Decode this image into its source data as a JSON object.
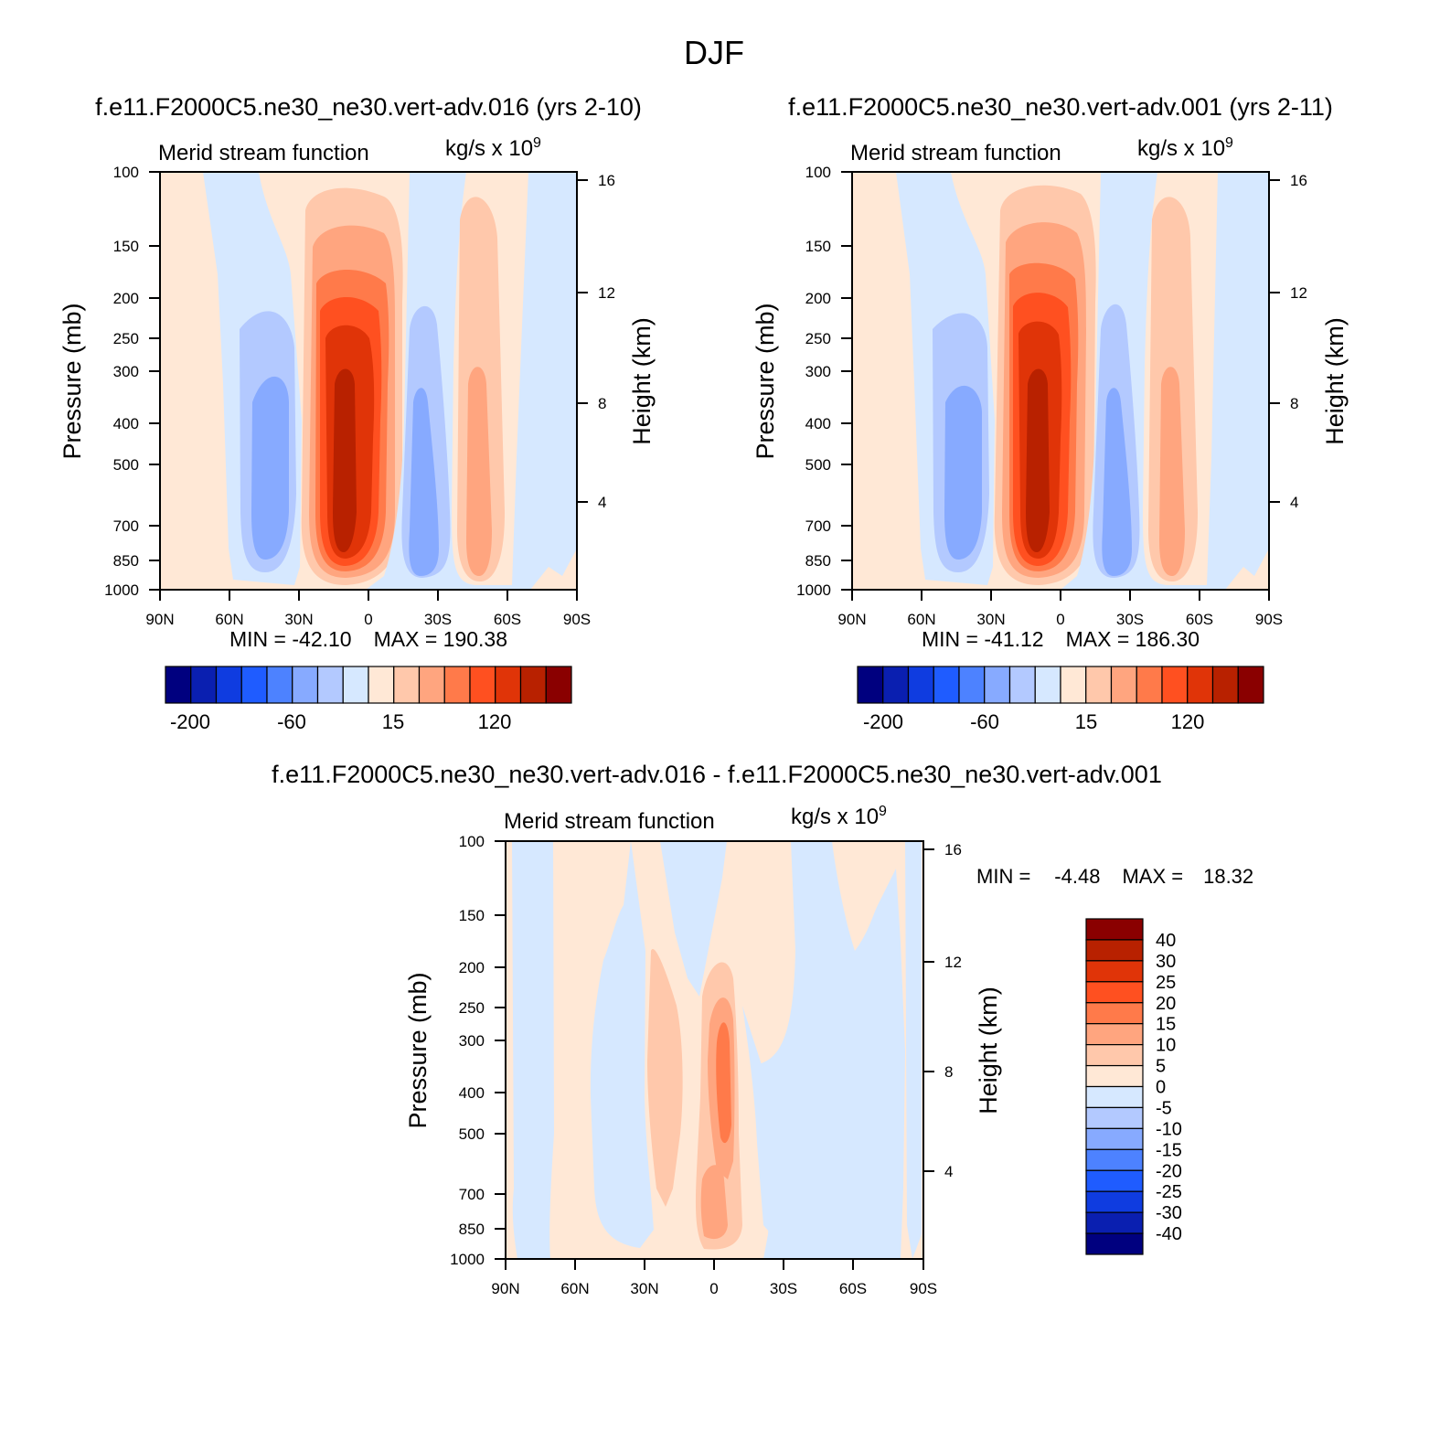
{
  "figure": {
    "title": "DJF"
  },
  "colors": {
    "abs_palette": [
      "#00007f",
      "#0a1fb0",
      "#0f3ce0",
      "#1f5cff",
      "#4d82ff",
      "#87aaff",
      "#b3c9ff",
      "#d6e8ff",
      "#ffe8d6",
      "#ffc8ab",
      "#ffa57f",
      "#ff7a4a",
      "#ff5020",
      "#e03408",
      "#b82100",
      "#8a0000"
    ],
    "diff_palette": [
      "#00007f",
      "#0a1fb0",
      "#0f3ce0",
      "#1f5cff",
      "#4d82ff",
      "#87aaff",
      "#b3c9ff",
      "#d6e8ff",
      "#ffe8d6",
      "#ffc8ab",
      "#ffa57f",
      "#ff7a4a",
      "#ff5020",
      "#e03408",
      "#b82100",
      "#8a0000"
    ]
  },
  "chart_data": [
    {
      "type": "heatmap",
      "title": "f.e11.F2000C5.ne30_ne30.vert-adv.016 (yrs 2-10)",
      "left_subtitle": "Merid stream function",
      "right_subtitle": "kg/s x 10",
      "right_subtitle_exp": "9",
      "xlabel": "",
      "ylabel": "Pressure (mb)",
      "y2label": "Height (km)",
      "xticks": [
        "90N",
        "60N",
        "30N",
        "0",
        "30S",
        "60S",
        "90S"
      ],
      "yticks": [
        100,
        150,
        200,
        250,
        300,
        400,
        500,
        700,
        850,
        1000
      ],
      "y2ticks": [
        16,
        12,
        8,
        4
      ],
      "ylim": [
        1000,
        100
      ],
      "y_scale": "log",
      "min_label": "MIN",
      "min_value": "-42.10",
      "max_label": "MAX",
      "max_value": "190.38",
      "colorbar_ticks": [
        "-200",
        "-60",
        "15",
        "120"
      ],
      "features": [
        {
          "lat": -12,
          "p": 400,
          "value": 190
        },
        {
          "lat": 40,
          "p": 420,
          "value": -42
        },
        {
          "lat": -24,
          "p": 500,
          "value": -30
        },
        {
          "lat": -46,
          "p": 480,
          "value": 40
        }
      ]
    },
    {
      "type": "heatmap",
      "title": "f.e11.F2000C5.ne30_ne30.vert-adv.001 (yrs 2-11)",
      "left_subtitle": "Merid stream function",
      "right_subtitle": "kg/s x 10",
      "right_subtitle_exp": "9",
      "xlabel": "",
      "ylabel": "Pressure (mb)",
      "y2label": "Height (km)",
      "xticks": [
        "90N",
        "60N",
        "30N",
        "0",
        "30S",
        "60S",
        "90S"
      ],
      "yticks": [
        100,
        150,
        200,
        250,
        300,
        400,
        500,
        700,
        850,
        1000
      ],
      "y2ticks": [
        16,
        12,
        8,
        4
      ],
      "ylim": [
        1000,
        100
      ],
      "y_scale": "log",
      "min_label": "MIN",
      "min_value": "-41.12",
      "max_label": "MAX",
      "max_value": "186.30",
      "colorbar_ticks": [
        "-200",
        "-60",
        "15",
        "120"
      ],
      "features": [
        {
          "lat": -9,
          "p": 400,
          "value": 186
        },
        {
          "lat": 40,
          "p": 420,
          "value": -41
        },
        {
          "lat": -23,
          "p": 500,
          "value": -30
        },
        {
          "lat": -47,
          "p": 480,
          "value": 40
        }
      ]
    },
    {
      "type": "heatmap",
      "title": "f.e11.F2000C5.ne30_ne30.vert-adv.016 - f.e11.F2000C5.ne30_ne30.vert-adv.001",
      "left_subtitle": "Merid stream function",
      "right_subtitle": "kg/s x 10",
      "right_subtitle_exp": "9",
      "xlabel": "",
      "ylabel": "Pressure (mb)",
      "y2label": "Height (km)",
      "xticks": [
        "90N",
        "60N",
        "30N",
        "0",
        "30S",
        "60S",
        "90S"
      ],
      "yticks": [
        100,
        150,
        200,
        250,
        300,
        400,
        500,
        700,
        850,
        1000
      ],
      "y2ticks": [
        16,
        12,
        8,
        4
      ],
      "ylim": [
        1000,
        100
      ],
      "y_scale": "log",
      "min_label": "MIN =",
      "min_value": "-4.48",
      "max_label": "MAX =",
      "max_value": "18.32",
      "colorbar_ticks": [
        "40",
        "30",
        "25",
        "20",
        "15",
        "10",
        "5",
        "0",
        "-5",
        "-10",
        "-15",
        "-20",
        "-25",
        "-30",
        "-40"
      ],
      "features": [
        {
          "lat": -4,
          "p": 400,
          "value": 18.32
        },
        {
          "lat": 16,
          "p": 350,
          "value": 8
        },
        {
          "lat": -30,
          "p": 600,
          "value": -4.48
        }
      ]
    }
  ]
}
